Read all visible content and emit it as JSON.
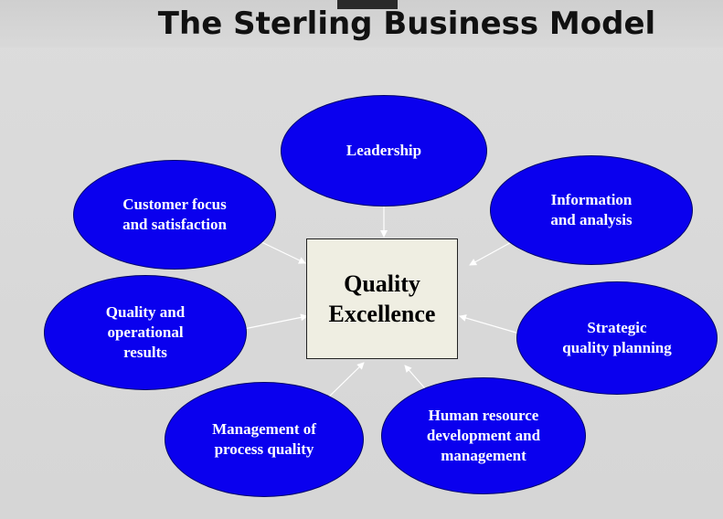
{
  "slide": {
    "title": "The Sterling Business Model"
  },
  "diagram": {
    "center": {
      "label": "Quality\nExcellence"
    },
    "nodes": [
      {
        "id": "leadership",
        "label": "Leadership"
      },
      {
        "id": "information",
        "label": "Information\nand analysis"
      },
      {
        "id": "strategic",
        "label": "Strategic\nquality planning"
      },
      {
        "id": "human-resource",
        "label": "Human resource\ndevelopment and\nmanagement"
      },
      {
        "id": "process-quality",
        "label": "Management of\nprocess quality"
      },
      {
        "id": "operational-results",
        "label": "Quality and\noperational\nresults"
      },
      {
        "id": "customer-focus",
        "label": "Customer focus\nand satisfaction"
      }
    ]
  },
  "colors": {
    "node_fill": "#0a00ee",
    "node_text": "#ffffff",
    "center_fill": "#efeee2",
    "connector": "#ffffff",
    "background": "#d9d9d9"
  }
}
